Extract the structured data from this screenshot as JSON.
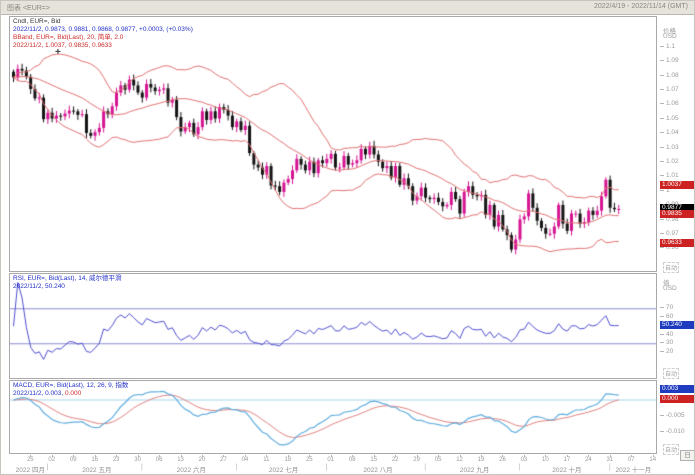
{
  "window": {
    "title": "图表 <EUR=>",
    "date_range": "2022/4/19 - 2022/11/14 (GMT)",
    "periodicity": "日"
  },
  "main_panel": {
    "legend_line1": "Cndl, EUR=, Bid",
    "legend_line2": "2022/11/2, 0.9873, 0.9881, 0.9868, 0.9877, +0.0003, (+0.03%)",
    "legend_line3": "BBand, EUR=, Bid(Last), 20, 简单, 2.0",
    "legend_line4": "2022/11/2, 1.0037, 0.9835, 0.9633",
    "axis_title": "价格",
    "axis_unit": "USD",
    "price_ticks": [
      "1.1",
      "1.09",
      "1.08",
      "1.07",
      "1.06",
      "1.05",
      "1.04",
      "1.03",
      "1.02",
      "1.01",
      "1",
      "0.99",
      "0.98",
      "0.97",
      "0.96"
    ],
    "badges": {
      "bb_upper": "1.0037",
      "last": "0.9877",
      "bb_mid": "0.9835",
      "bb_lower": "0.9633"
    },
    "auto_label": "自动",
    "crosshair_glyph": "+"
  },
  "rsi_panel": {
    "legend_line1": "RSI, EUR=, Bid(Last), 14, 威尔德平滑",
    "legend_line2": "2022/11/2, 50.240",
    "axis_title": "值",
    "axis_unit": "USD",
    "ticks": [
      "70",
      "60",
      "50",
      "40",
      "30",
      "20"
    ],
    "badge": "50.240",
    "upper_band": 70,
    "lower_band": 30,
    "auto_label": "自动"
  },
  "macd_panel": {
    "legend_line1": "MACD, EUR=, Bid(Last), 12, 26, 9, 指数",
    "legend_date": "2022/11/2,",
    "legend_macd": "0.003,",
    "legend_signal": "0.000",
    "ticks": [
      "-0.005",
      "-0.010"
    ],
    "badges": {
      "macd": "0.003",
      "signal": "0.000"
    },
    "auto_label": "自动"
  },
  "x_axis": {
    "day_labels": [
      "25",
      "02",
      "09",
      "16",
      "23",
      "30",
      "06",
      "13",
      "20",
      "27",
      "04",
      "11",
      "18",
      "25",
      "01",
      "08",
      "15",
      "22",
      "29",
      "05",
      "12",
      "19",
      "26",
      "03",
      "10",
      "17",
      "24",
      "31",
      "07",
      "14"
    ],
    "month_labels": [
      "2022 四月",
      "2022 五月",
      "2022 六月",
      "2022 七月",
      "2022 八月",
      "2022 九月",
      "2022 十月",
      "2022 十一月"
    ]
  },
  "chart_data": {
    "type": "candlestick",
    "symbol": "EUR=",
    "field": "Bid",
    "interval": "daily",
    "range_start": "2022/4/19",
    "range_end": "2022/11/14",
    "last_candle": {
      "date": "2022/11/2",
      "open": 0.9873,
      "high": 0.9881,
      "low": 0.9868,
      "close": 0.9877,
      "change": "+0.0003",
      "change_pct": "+0.03%"
    },
    "closes": [
      1.079,
      1.085,
      1.0838,
      1.0795,
      1.071,
      1.0645,
      1.065,
      1.05,
      1.0545,
      1.0505,
      1.0525,
      1.052,
      1.054,
      1.056,
      1.0555,
      1.053,
      1.0535,
      1.0405,
      1.0385,
      1.041,
      1.044,
      1.0555,
      1.0535,
      1.059,
      1.0685,
      1.0735,
      1.0705,
      1.0775,
      1.0735,
      1.0685,
      1.065,
      1.0745,
      1.072,
      1.0695,
      1.0705,
      1.0715,
      1.0615,
      1.0635,
      1.0515,
      1.0415,
      1.0445,
      1.0475,
      1.0395,
      1.0445,
      1.0555,
      1.0495,
      1.0555,
      1.0505,
      1.0585,
      1.0565,
      1.0525,
      1.0445,
      1.0485,
      1.0425,
      1.0455,
      1.0265,
      1.0185,
      1.0165,
      1.0115,
      1.0175,
      1.004,
      1.0035,
      0.9995,
      1.006,
      1.0085,
      1.0145,
      1.0225,
      1.0185,
      1.0145,
      1.0205,
      1.0125,
      1.0215,
      1.0195,
      1.0225,
      1.026,
      1.0165,
      1.0165,
      1.0245,
      1.0185,
      1.0195,
      1.0215,
      1.0295,
      1.0255,
      1.0315,
      1.0255,
      1.0205,
      1.016,
      1.0175,
      1.0095,
      1.0175,
      1.0045,
      1.009,
      1.0035,
      0.9935,
      0.9965,
      1.0025,
      0.9955,
      0.9945,
      0.9955,
      0.9925,
      0.9895,
      0.9905,
      0.9995,
      0.9945,
      0.9845,
      0.9995,
      1.0035,
      0.9975,
      0.9965,
      0.9975,
      0.9835,
      0.9905,
      0.9755,
      0.9835,
      0.9735,
      0.9695,
      0.9595,
      0.9665,
      0.9805,
      0.9825,
      0.9985,
      0.9885,
      0.9795,
      0.9745,
      0.9705,
      0.9705,
      0.9755,
      0.9905,
      0.9775,
      0.9725,
      0.9845,
      0.9845,
      0.9775,
      0.9785,
      0.9865,
      0.9835,
      0.9865,
      0.9965,
      1.008,
      0.9885,
      0.9875,
      0.9877
    ],
    "month_start_indexes": [
      0,
      9,
      31,
      53,
      74,
      97,
      119,
      140
    ],
    "total_slots": 150,
    "indicators": {
      "bollinger": {
        "period": 20,
        "ma_type": "简单",
        "deviation": 2.0,
        "last_upper": 1.0037,
        "last_mid": 0.9835,
        "last_lower": 0.9633
      },
      "rsi": {
        "period": 14,
        "smoothing": "威尔德平滑",
        "last": 50.24,
        "overbought": 70,
        "oversold": 30
      },
      "macd": {
        "fast": 12,
        "slow": 26,
        "signal": 9,
        "last_macd": 0.003,
        "last_signal": 0.0
      }
    },
    "colors": {
      "up_candle": "#d61492",
      "down_candle": "#141414",
      "bollinger": "#e07070",
      "rsi_line": "#4d4dd0",
      "rsi_bands": "#8d8dd0",
      "macd_line": "#63aede",
      "signal_line": "#e08080",
      "badge_red": "#cc2222",
      "badge_blue": "#1f3bbf",
      "badge_black": "#000000"
    }
  }
}
